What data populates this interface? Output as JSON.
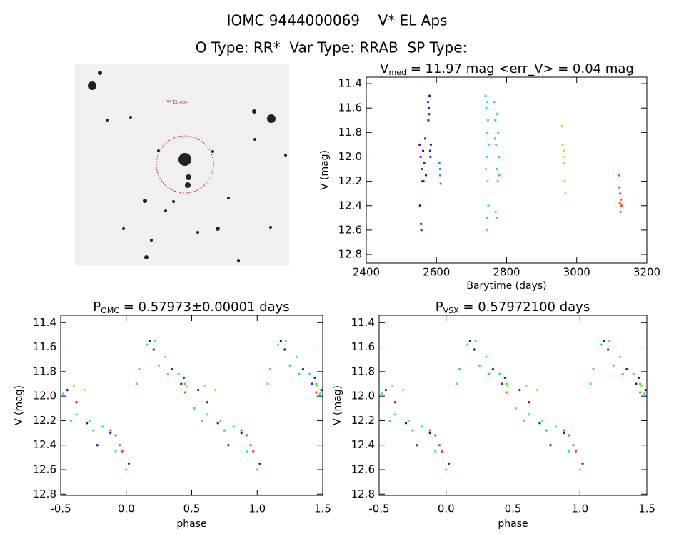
{
  "header": {
    "title": "IOMC 9444000069    V* EL Aps",
    "subtitle": "O Type: RR*  Var Type: RRAB  SP Type:",
    "image_label": "V* EL Aps"
  },
  "chart_data": [
    {
      "type": "scatter",
      "title_parts": [
        "V",
        "med",
        " = 11.97 mag <err_V> = 0.04 mag"
      ],
      "xlabel": "Barytime (days)",
      "ylabel": "V (mag)",
      "xlim": [
        2400,
        3200
      ],
      "xticks": [
        2400,
        2600,
        2800,
        3000,
        3200
      ],
      "ylim": [
        12.87,
        11.347
      ],
      "yticks": [
        11.4,
        11.6,
        11.8,
        {
          "value": 12,
          "label": "12.0"
        },
        12.2,
        12.4,
        12.6,
        12.8
      ],
      "series": [
        {
          "color": "#5a0a8a",
          "x": [
            2552,
            2555,
            2558,
            2560,
            2553,
            2556,
            2562,
            2565,
            2568,
            2570,
            2557,
            2563
          ],
          "values": [
            11.9,
            12.0,
            12.1,
            12.2,
            12.4,
            12.55,
            11.95,
            12.05,
            11.85,
            12.15,
            12.6,
            12.2
          ]
        },
        {
          "color": "#1a1aaa",
          "x": [
            2576,
            2578,
            2580,
            2577,
            2582,
            2583,
            2584,
            2579
          ],
          "values": [
            11.55,
            11.6,
            11.5,
            11.7,
            11.95,
            12.0,
            11.9,
            11.65
          ]
        },
        {
          "color": "#2090e0",
          "x": [
            2608,
            2610,
            2612,
            2611
          ],
          "values": [
            12.05,
            12.1,
            12.22,
            12.15
          ]
        },
        {
          "color": "#30e0d0",
          "x": [
            2740,
            2742,
            2744,
            2745,
            2746,
            2748,
            2743,
            2747,
            2741,
            2749,
            2745,
            2744
          ],
          "values": [
            11.5,
            11.6,
            11.8,
            12.0,
            12.2,
            12.4,
            12.6,
            11.7,
            12.1,
            11.9,
            12.5,
            11.55
          ]
        },
        {
          "color": "#30e060",
          "x": [
            2765,
            2768,
            2770,
            2772,
            2775,
            2778,
            2776,
            2769,
            2771,
            2773,
            2779,
            2767
          ],
          "values": [
            11.55,
            11.7,
            11.9,
            12.1,
            12.2,
            12.0,
            11.8,
            12.45,
            12.5,
            11.65,
            12.15,
            11.85
          ]
        },
        {
          "color": "#b0e020",
          "x": [
            2958,
            2960,
            2962,
            2964,
            2966,
            2968,
            2963
          ],
          "values": [
            11.75,
            11.9,
            12.0,
            12.05,
            12.2,
            12.3,
            11.95
          ]
        },
        {
          "color": "#f05010",
          "x": [
            3120,
            3122,
            3124,
            3126,
            3128,
            3125,
            3123
          ],
          "values": [
            12.15,
            12.25,
            12.3,
            12.35,
            12.4,
            12.45,
            12.38
          ]
        }
      ]
    },
    {
      "type": "scatter",
      "title_parts": [
        "P",
        "OMC",
        " = 0.57973±0.00001 days"
      ],
      "xlabel": "phase",
      "ylabel": "V (mag)",
      "xlim": [
        -0.5,
        1.5
      ],
      "xticks": [
        -0.5,
        {
          "value": 0,
          "label": "0.0"
        },
        0.5,
        {
          "value": 1,
          "label": "1.0"
        },
        1.5
      ],
      "ylim": [
        12.81,
        11.34
      ],
      "yticks": [
        11.4,
        11.6,
        11.8,
        {
          "value": 12,
          "label": "12.0"
        },
        12.2,
        12.4,
        12.6,
        12.8
      ],
      "series": [
        {
          "color": "#30e0d0",
          "x": [
            -0.48,
            -0.38,
            -0.28,
            -0.18,
            -0.08,
            0.0,
            0.08,
            0.16,
            0.22,
            0.3,
            0.4,
            0.52,
            0.62,
            0.72,
            0.82,
            0.92,
            1.0,
            1.08,
            1.16,
            1.22,
            1.3,
            1.4,
            1.48
          ],
          "values": [
            11.98,
            12.15,
            12.2,
            12.25,
            12.45,
            12.6,
            11.9,
            11.58,
            11.55,
            11.68,
            11.82,
            12.1,
            12.15,
            12.2,
            12.25,
            12.45,
            12.6,
            11.9,
            11.58,
            11.55,
            11.68,
            11.82,
            11.98
          ]
        },
        {
          "color": "#1a1aaa",
          "x": [
            -0.45,
            -0.3,
            -0.12,
            0.02,
            0.18,
            0.21,
            0.35,
            0.44,
            0.55,
            0.7,
            0.88,
            1.02,
            1.18,
            1.21,
            1.35,
            1.44,
            1.49
          ],
          "values": [
            11.95,
            12.22,
            12.3,
            12.55,
            11.55,
            11.62,
            11.78,
            11.85,
            11.95,
            12.22,
            12.3,
            12.55,
            11.55,
            11.62,
            11.78,
            11.85,
            11.95
          ]
        },
        {
          "color": "#30e060",
          "x": [
            -0.42,
            -0.25,
            0.1,
            0.25,
            0.32,
            0.45,
            0.58,
            0.75,
            1.1,
            1.25,
            1.32,
            1.45
          ],
          "values": [
            12.2,
            12.28,
            11.78,
            11.75,
            11.82,
            11.9,
            12.2,
            12.28,
            11.78,
            11.75,
            11.82,
            11.9
          ]
        },
        {
          "color": "#b0e020",
          "x": [
            -0.4,
            -0.32,
            0.46,
            0.6,
            0.68,
            1.46
          ],
          "values": [
            11.92,
            11.95,
            11.92,
            11.92,
            11.95,
            11.92
          ]
        },
        {
          "color": "#5a0a8a",
          "x": [
            -0.38,
            -0.22,
            0.42,
            0.62,
            0.78,
            1.42
          ],
          "values": [
            12.05,
            12.4,
            11.9,
            12.05,
            12.4,
            11.9
          ]
        },
        {
          "color": "#f05010",
          "x": [
            -0.12,
            -0.08,
            -0.05,
            -0.03,
            0.45,
            0.88,
            0.92,
            0.95,
            0.97,
            1.45
          ],
          "values": [
            12.28,
            12.32,
            12.4,
            12.45,
            11.97,
            12.28,
            12.32,
            12.4,
            12.45,
            11.97
          ]
        }
      ]
    },
    {
      "type": "scatter",
      "title_parts": [
        "P",
        "VSX",
        " = 0.57972100 days"
      ],
      "xlabel": "phase",
      "ylabel": "V (mag)",
      "xlim": [
        -0.5,
        1.5
      ],
      "xticks": [
        -0.5,
        {
          "value": 0,
          "label": "0.0"
        },
        0.5,
        {
          "value": 1,
          "label": "1.0"
        },
        1.5
      ],
      "ylim": [
        12.81,
        11.34
      ],
      "yticks": [
        11.4,
        11.6,
        11.8,
        {
          "value": 12,
          "label": "12.0"
        },
        12.2,
        12.4,
        12.6,
        12.8
      ],
      "series": [
        {
          "color": "#30e0d0",
          "x": [
            -0.48,
            -0.38,
            -0.28,
            -0.18,
            -0.08,
            0.0,
            0.08,
            0.16,
            0.22,
            0.3,
            0.4,
            0.52,
            0.62,
            0.72,
            0.82,
            0.92,
            1.0,
            1.08,
            1.16,
            1.22,
            1.3,
            1.4,
            1.48
          ],
          "values": [
            11.98,
            12.15,
            12.2,
            12.25,
            12.45,
            12.6,
            11.9,
            11.58,
            11.55,
            11.68,
            11.82,
            12.1,
            12.15,
            12.2,
            12.25,
            12.45,
            12.6,
            11.9,
            11.58,
            11.55,
            11.68,
            11.82,
            11.98
          ]
        },
        {
          "color": "#1a1aaa",
          "x": [
            -0.45,
            -0.3,
            -0.12,
            0.02,
            0.18,
            0.21,
            0.35,
            0.44,
            0.55,
            0.7,
            0.88,
            1.02,
            1.18,
            1.21,
            1.35,
            1.44,
            1.49
          ],
          "values": [
            11.95,
            12.22,
            12.3,
            12.55,
            11.55,
            11.62,
            11.78,
            11.85,
            11.95,
            12.22,
            12.3,
            12.55,
            11.55,
            11.62,
            11.78,
            11.85,
            11.95
          ]
        },
        {
          "color": "#30e060",
          "x": [
            -0.42,
            -0.25,
            0.1,
            0.25,
            0.32,
            0.45,
            0.58,
            0.75,
            1.1,
            1.25,
            1.32,
            1.45
          ],
          "values": [
            12.2,
            12.28,
            11.78,
            11.75,
            11.82,
            11.9,
            12.2,
            12.28,
            11.78,
            11.75,
            11.82,
            11.9
          ]
        },
        {
          "color": "#b0e020",
          "x": [
            -0.4,
            -0.32,
            0.46,
            0.6,
            0.68,
            1.46
          ],
          "values": [
            11.92,
            11.95,
            11.92,
            11.92,
            11.95,
            11.92
          ]
        },
        {
          "color": "#5a0a8a",
          "x": [
            -0.38,
            -0.22,
            0.42,
            0.62,
            0.78,
            1.42
          ],
          "values": [
            12.05,
            12.4,
            11.9,
            12.05,
            12.4,
            11.9
          ]
        },
        {
          "color": "#f05010",
          "x": [
            -0.12,
            -0.08,
            -0.05,
            -0.03,
            0.45,
            0.88,
            0.92,
            0.95,
            0.97,
            1.45
          ],
          "values": [
            12.28,
            12.32,
            12.4,
            12.45,
            11.97,
            12.28,
            12.32,
            12.4,
            12.45,
            11.97
          ]
        }
      ]
    }
  ]
}
